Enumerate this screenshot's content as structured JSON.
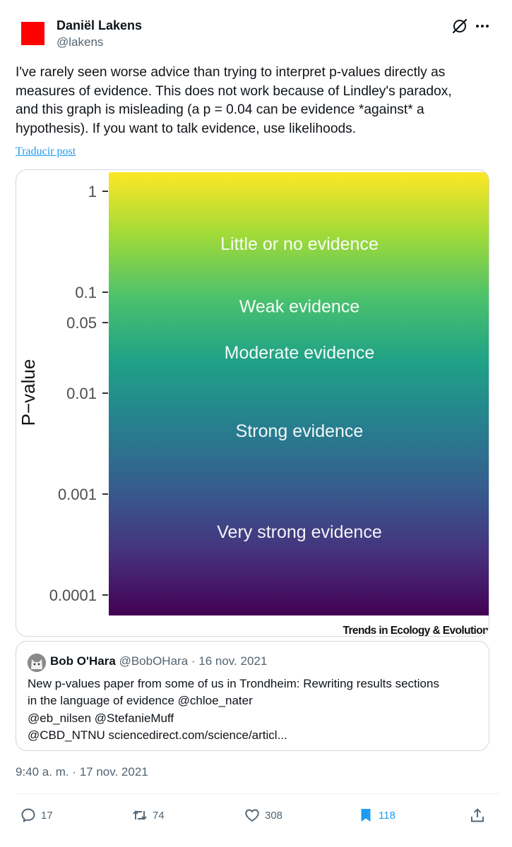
{
  "author": {
    "name": "Daniël Lakens",
    "handle": "@lakens",
    "avatar_color": "#ff0000"
  },
  "tweet": {
    "lines": [
      "I've rarely seen worse advice than trying to interpret p-values directly as",
      "measures of evidence. This does not work because of Lindley's paradox,",
      "and this graph is misleading (a p = 0.04 can be evidence *against* a",
      "hypothesis). If you want to talk evidence, use likelihoods."
    ],
    "translate_label": "Traducir post"
  },
  "chart_data": {
    "type": "heatmap",
    "ylabel": "P−value",
    "scale": "log",
    "ylim": [
      0.0001,
      1
    ],
    "ticks": [
      {
        "value": 1,
        "label": "1"
      },
      {
        "value": 0.1,
        "label": "0.1"
      },
      {
        "value": 0.05,
        "label": "0.05"
      },
      {
        "value": 0.01,
        "label": "0.01"
      },
      {
        "value": 0.001,
        "label": "0.001"
      },
      {
        "value": 0.0001,
        "label": "0.0001"
      }
    ],
    "bands": [
      {
        "label": "Little or no evidence",
        "y": 0.3
      },
      {
        "label": "Weak evidence",
        "y": 0.072
      },
      {
        "label": "Moderate evidence",
        "y": 0.025
      },
      {
        "label": "Strong evidence",
        "y": 0.0042
      },
      {
        "label": "Very strong evidence",
        "y": 0.00042
      }
    ],
    "colormap": [
      "#fde725",
      "#a0da39",
      "#4ac16d",
      "#1fa187",
      "#277f8e",
      "#365c8d",
      "#46327e",
      "#440154"
    ],
    "credit": "Trends in Ecology & Evolution"
  },
  "quote": {
    "name": "Bob O'Hara",
    "handle": "@BobOHara",
    "sep": " · ",
    "date": "16 nov. 2021",
    "lines": [
      "New p-values paper from some of us in Trondheim: Rewriting results sections",
      "in the language of evidence @chloe_nater",
      "@eb_nilsen @StefanieMuff",
      "@CBD_NTNU sciencedirect.com/science/articl..."
    ]
  },
  "timestamp": "9:40 a. m. · 17 nov. 2021",
  "actions": {
    "replies": "17",
    "reposts": "74",
    "likes": "308",
    "bookmarks": "118",
    "bookmark_color": "#1d9bf0"
  }
}
